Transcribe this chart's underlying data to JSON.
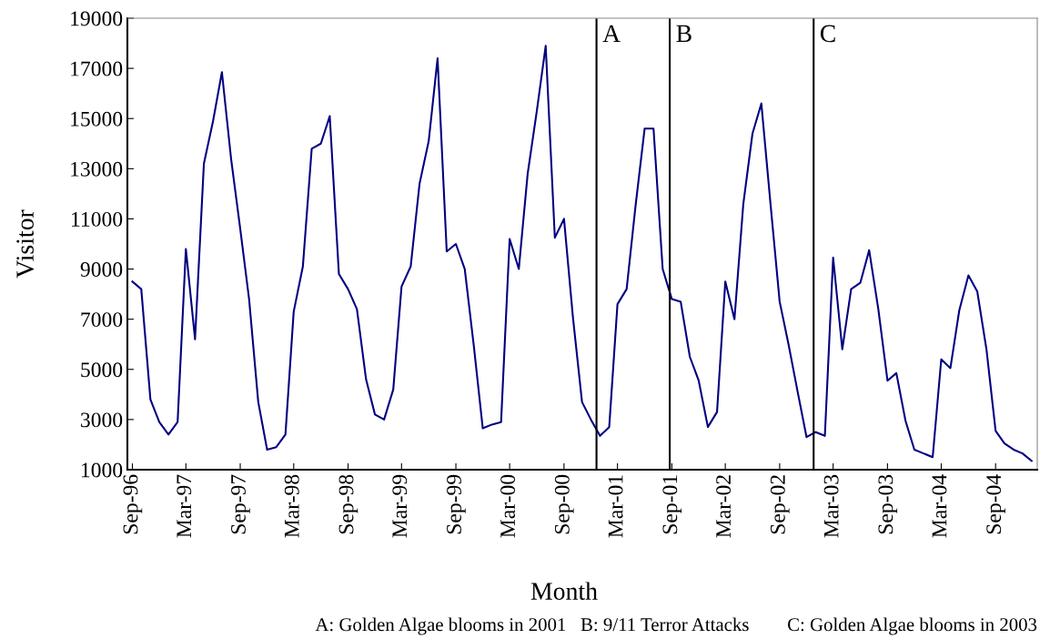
{
  "chart_data": {
    "type": "line",
    "xlabel": "Month",
    "ylabel": "Visitor",
    "x": [
      "1996-09",
      "1996-10",
      "1996-11",
      "1996-12",
      "1997-01",
      "1997-02",
      "1997-03",
      "1997-04",
      "1997-05",
      "1997-06",
      "1997-07",
      "1997-08",
      "1997-09",
      "1997-10",
      "1997-11",
      "1997-12",
      "1998-01",
      "1998-02",
      "1998-03",
      "1998-04",
      "1998-05",
      "1998-06",
      "1998-07",
      "1998-08",
      "1998-09",
      "1998-10",
      "1998-11",
      "1998-12",
      "1999-01",
      "1999-02",
      "1999-03",
      "1999-04",
      "1999-05",
      "1999-06",
      "1999-07",
      "1999-08",
      "1999-09",
      "1999-10",
      "1999-11",
      "1999-12",
      "2000-01",
      "2000-02",
      "2000-03",
      "2000-04",
      "2000-05",
      "2000-06",
      "2000-07",
      "2000-08",
      "2000-09",
      "2000-10",
      "2000-11",
      "2000-12",
      "2001-01",
      "2001-02",
      "2001-03",
      "2001-04",
      "2001-05",
      "2001-06",
      "2001-07",
      "2001-08",
      "2001-09",
      "2001-10",
      "2001-11",
      "2001-12",
      "2002-01",
      "2002-02",
      "2002-03",
      "2002-04",
      "2002-05",
      "2002-06",
      "2002-07",
      "2002-08",
      "2002-09",
      "2002-10",
      "2002-11",
      "2002-12",
      "2003-01",
      "2003-02",
      "2003-03",
      "2003-04",
      "2003-05",
      "2003-06",
      "2003-07",
      "2003-08",
      "2003-09",
      "2003-10",
      "2003-11",
      "2003-12",
      "2004-01",
      "2004-02",
      "2004-03",
      "2004-04",
      "2004-05",
      "2004-06",
      "2004-07",
      "2004-08",
      "2004-09",
      "2004-10",
      "2004-11",
      "2004-12",
      "2005-01"
    ],
    "series": [
      {
        "color": "#000080",
        "values": [
          8500,
          8200,
          3800,
          2900,
          2400,
          2900,
          9800,
          6200,
          13200,
          14900,
          16850,
          13400,
          10600,
          7800,
          3700,
          1800,
          1900,
          2400,
          7300,
          9100,
          13800,
          14000,
          15100,
          8800,
          8200,
          7400,
          4600,
          3200,
          3000,
          4200,
          8300,
          9100,
          12400,
          14100,
          17400,
          9700,
          10000,
          9000,
          5900,
          2650,
          2800,
          2900,
          10200,
          9000,
          12800,
          15300,
          17900,
          10250,
          11000,
          7100,
          3700,
          3000,
          2350,
          2700,
          7600,
          8200,
          11500,
          14600,
          14600,
          9000,
          7800,
          7700,
          5500,
          4550,
          2700,
          3300,
          8500,
          7000,
          11600,
          14400,
          15600,
          11600,
          7700,
          6000,
          4100,
          2300,
          2500,
          2350,
          9450,
          5800,
          8200,
          8450,
          9750,
          7400,
          4550,
          4850,
          2950,
          1800,
          1650,
          1500,
          5400,
          5050,
          7350,
          8750,
          8100,
          5800,
          2550,
          2050,
          1800,
          1650,
          1350
        ]
      }
    ],
    "xlim": [
      "1996-08-15",
      "2005-01-20"
    ],
    "xticks": [
      {
        "value": "1996-09",
        "label": "Sep-96"
      },
      {
        "value": "1997-03",
        "label": "Mar-97"
      },
      {
        "value": "1997-09",
        "label": "Sep-97"
      },
      {
        "value": "1998-03",
        "label": "Mar-98"
      },
      {
        "value": "1998-09",
        "label": "Sep-98"
      },
      {
        "value": "1999-03",
        "label": "Mar-99"
      },
      {
        "value": "1999-09",
        "label": "Sep-99"
      },
      {
        "value": "2000-03",
        "label": "Mar-00"
      },
      {
        "value": "2000-09",
        "label": "Sep-00"
      },
      {
        "value": "2001-03",
        "label": "Mar-01"
      },
      {
        "value": "2001-09",
        "label": "Sep-01"
      },
      {
        "value": "2002-03",
        "label": "Mar-02"
      },
      {
        "value": "2002-09",
        "label": "Sep-02"
      },
      {
        "value": "2003-03",
        "label": "Mar-03"
      },
      {
        "value": "2003-09",
        "label": "Sep-03"
      },
      {
        "value": "2004-03",
        "label": "Mar-04"
      },
      {
        "value": "2004-09",
        "label": "Sep-04"
      }
    ],
    "ylim": [
      1000,
      19000
    ],
    "yticks": [
      1000,
      3000,
      5000,
      7000,
      9000,
      11000,
      13000,
      15000,
      17000,
      19000
    ],
    "ref_lines": [
      {
        "axis": "x",
        "value": "2000-12-20",
        "label": "A",
        "color": "#000000"
      },
      {
        "axis": "x",
        "value": "2001-08-25",
        "label": "B",
        "color": "#000000"
      },
      {
        "axis": "x",
        "value": "2002-12-25",
        "label": "C",
        "color": "#000000"
      }
    ],
    "annotations": [
      "A: Golden Algae blooms in 2001   B: 9/11 Terror Attacks        C: Golden Algae blooms in 2003"
    ],
    "grid": false,
    "legend": false,
    "marker": "none",
    "line_style": "solid"
  }
}
